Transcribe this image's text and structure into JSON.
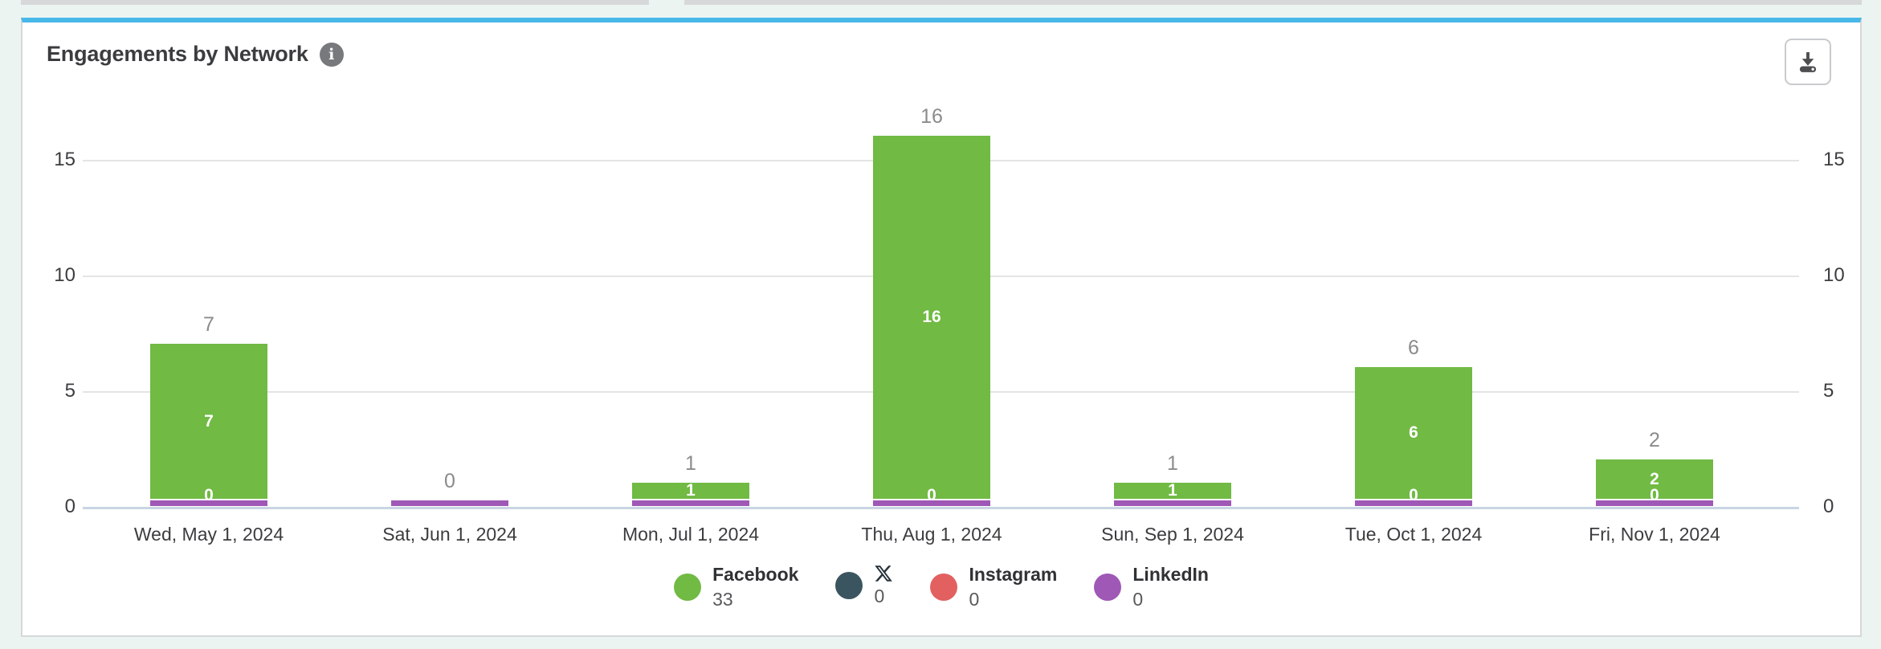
{
  "page": {
    "background": "#ecf4f1",
    "card_accent": "#47b8e8"
  },
  "header": {
    "title": "Engagements by Network",
    "info_icon_glyph": "i"
  },
  "toolbar": {
    "download_label": "Download"
  },
  "chart_data": {
    "type": "bar",
    "stacked": true,
    "title": "Engagements by Network",
    "categories": [
      "Wed, May 1, 2024",
      "Sat, Jun 1, 2024",
      "Mon, Jul 1, 2024",
      "Thu, Aug 1, 2024",
      "Sun, Sep 1, 2024",
      "Tue, Oct 1, 2024",
      "Fri, Nov 1, 2024"
    ],
    "series": [
      {
        "name": "Facebook",
        "color": "#71ba44",
        "values": [
          7,
          0,
          1,
          16,
          1,
          6,
          2
        ],
        "total": 33
      },
      {
        "name": "X",
        "color": "#3a5560",
        "values": [
          0,
          0,
          0,
          0,
          0,
          0,
          0
        ],
        "total": 0
      },
      {
        "name": "Instagram",
        "color": "#e36060",
        "values": [
          0,
          0,
          0,
          0,
          0,
          0,
          0
        ],
        "total": 0
      },
      {
        "name": "LinkedIn",
        "color": "#9f58b5",
        "values": [
          0,
          0,
          0,
          0,
          0,
          0,
          0
        ],
        "total": 0
      }
    ],
    "bar_totals": [
      7,
      0,
      1,
      16,
      1,
      6,
      2
    ],
    "y_axis": {
      "ticks": [
        0,
        5,
        10,
        15
      ],
      "min": 0,
      "max": 16.6,
      "label_sides": "both"
    },
    "xlabel": "",
    "ylabel": "",
    "grid": true,
    "legend_position": "bottom"
  },
  "legend": {
    "items": [
      {
        "label": "Facebook",
        "value": "33",
        "color": "#71ba44"
      },
      {
        "label": "X",
        "value": "0",
        "color": "#3a5560"
      },
      {
        "label": "Instagram",
        "value": "0",
        "color": "#e36060"
      },
      {
        "label": "LinkedIn",
        "value": "0",
        "color": "#9f58b5"
      }
    ]
  }
}
